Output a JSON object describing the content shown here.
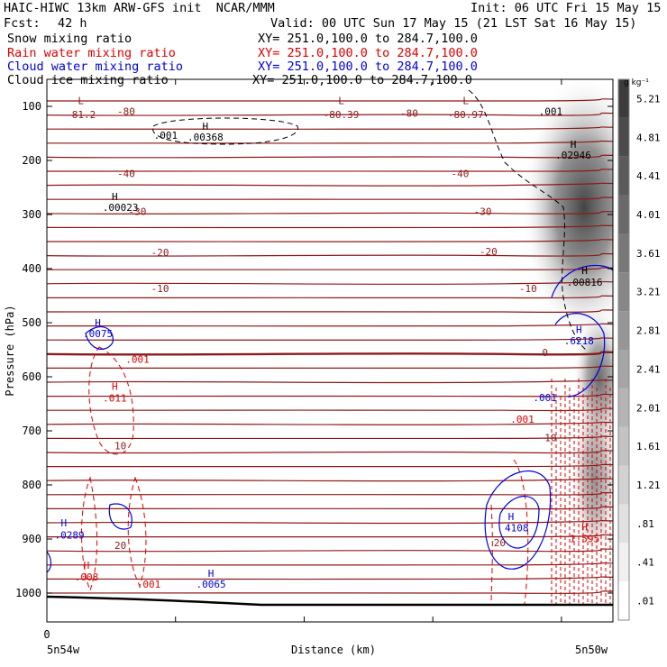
{
  "header": {
    "line1_left": "HAIC-HIWC 13km ARW-GFS init  NCAR/MMM",
    "line1_right": "Init: 06 UTC Fri 15 May 15",
    "fcst_label": "Fcst:",
    "fcst_value": "42 h",
    "valid": "Valid: 00 UTC Sun 17 May 15 (21 LST Sat 16 May 15)",
    "fields": [
      {
        "name": "Snow mixing ratio",
        "xy": "XY= 251.0,100.0 to 284.7,100.0",
        "color": "#000000"
      },
      {
        "name": "Rain water mixing ratio",
        "xy": "XY= 251.0,100.0 to 284.7,100.0",
        "color": "#e00000"
      },
      {
        "name": "Cloud water mixing ratio",
        "xy": "XY= 251.0,100.0 to 284.7,100.0",
        "color": "#0000e0"
      },
      {
        "name": "Cloud ice mixing ratio",
        "xy": "XY= 251.0,100.0 to 284.7,100.0",
        "color": "#000000"
      }
    ]
  },
  "chart_data": {
    "type": "contour cross-section",
    "ylabel": "Pressure (hPa)",
    "xlabel": "Distance (km)",
    "yticks": [
      100,
      200,
      300,
      400,
      500,
      600,
      700,
      800,
      900,
      1000
    ],
    "ylim": [
      1050,
      50
    ],
    "xticks": [
      0
    ],
    "xlim": [
      0,
      100
    ],
    "x_start_label": "5n54w",
    "x_end_label": "5n50w",
    "colorbar": {
      "unit": "g kg⁻¹",
      "levels": [
        ".01",
        ".41",
        ".81",
        "1.21",
        "1.61",
        "2.01",
        "2.41",
        "2.81",
        "3.21",
        "3.61",
        "4.01",
        "4.41",
        "4.81",
        "5.21"
      ]
    },
    "temperature_contours": {
      "color": "#8b1a1a",
      "labels": [
        {
          "text": "-81.2",
          "x": 6,
          "p": 122
        },
        {
          "text": "-80",
          "x": 14,
          "p": 116
        },
        {
          "text": "-80.39",
          "x": 52,
          "p": 122
        },
        {
          "text": "-80",
          "x": 64,
          "p": 119
        },
        {
          "text": "-80.97",
          "x": 74,
          "p": 122
        },
        {
          "text": "-40",
          "x": 14,
          "p": 231
        },
        {
          "text": "-40",
          "x": 73,
          "p": 231
        },
        {
          "text": "-30",
          "x": 16,
          "p": 301
        },
        {
          "text": "-30",
          "x": 77,
          "p": 301
        },
        {
          "text": "-20",
          "x": 20,
          "p": 377
        },
        {
          "text": "-20",
          "x": 78,
          "p": 375
        },
        {
          "text": "-10",
          "x": 20,
          "p": 443
        },
        {
          "text": "-10",
          "x": 85,
          "p": 443
        },
        {
          "text": "0",
          "x": 88,
          "p": 562
        },
        {
          "text": "10",
          "x": 13,
          "p": 734
        },
        {
          "text": "10",
          "x": 89,
          "p": 719
        },
        {
          "text": "20",
          "x": 13,
          "p": 918
        },
        {
          "text": "20",
          "x": 80,
          "p": 913
        }
      ],
      "extrema": [
        {
          "type": "L",
          "x": 6,
          "p": 96
        },
        {
          "type": "L",
          "x": 52,
          "p": 96
        },
        {
          "type": "L",
          "x": 74,
          "p": 96
        }
      ]
    },
    "cloud_ice": {
      "color": "#000000",
      "labels": [
        {
          "text": ".001",
          "x": 21,
          "p": 160
        },
        {
          "text": ".001",
          "x": 89,
          "p": 116
        },
        {
          "text": ".00023",
          "x": 13,
          "p": 293
        },
        {
          "text": ".00368",
          "x": 28,
          "p": 163
        },
        {
          "text": ".02946",
          "x": 93,
          "p": 197
        },
        {
          "text": ".00816",
          "x": 95,
          "p": 432
        }
      ],
      "extrema": [
        {
          "type": "H",
          "x": 12,
          "p": 273,
          "value": ".00023"
        },
        {
          "type": "H",
          "x": 28,
          "p": 143,
          "value": ".00368"
        },
        {
          "type": "H",
          "x": 93,
          "p": 177,
          "value": ".02946"
        },
        {
          "type": "H",
          "x": 95,
          "p": 410,
          "value": ".00816"
        }
      ]
    },
    "rain_water": {
      "color": "#e00000",
      "labels": [
        {
          "text": ".001",
          "x": 16,
          "p": 574
        },
        {
          "text": ".001",
          "x": 84,
          "p": 685
        },
        {
          "text": ".001",
          "x": 18,
          "p": 990
        },
        {
          "text": ".011",
          "x": 12,
          "p": 646
        },
        {
          "text": ".008",
          "x": 7,
          "p": 977
        },
        {
          "text": "1.595",
          "x": 95,
          "p": 906
        }
      ],
      "extrema": [
        {
          "type": "H",
          "x": 12,
          "p": 624,
          "value": ".011"
        },
        {
          "type": "H",
          "x": 7,
          "p": 955,
          "value": ".008"
        },
        {
          "type": "H",
          "x": 95,
          "p": 884,
          "value": "1.595"
        }
      ]
    },
    "cloud_water": {
      "color": "#0000e0",
      "labels": [
        {
          "text": ".0075",
          "x": 9,
          "p": 527
        },
        {
          "text": ".0289",
          "x": 4,
          "p": 899
        },
        {
          "text": ".0065",
          "x": 29,
          "p": 990
        },
        {
          "text": ".6218",
          "x": 94,
          "p": 540
        },
        {
          "text": ".001",
          "x": 88,
          "p": 645
        },
        {
          "text": "4108",
          "x": 83,
          "p": 886
        }
      ],
      "extrema": [
        {
          "type": "H",
          "x": 9,
          "p": 507,
          "value": ".0075"
        },
        {
          "type": "H",
          "x": 3,
          "p": 877,
          "value": ".0289"
        },
        {
          "type": "H",
          "x": 29,
          "p": 970,
          "value": ".0065"
        },
        {
          "type": "H",
          "x": 94,
          "p": 519,
          "value": ".6218"
        },
        {
          "type": "H",
          "x": 82,
          "p": 865,
          "value": "4108"
        }
      ]
    }
  }
}
